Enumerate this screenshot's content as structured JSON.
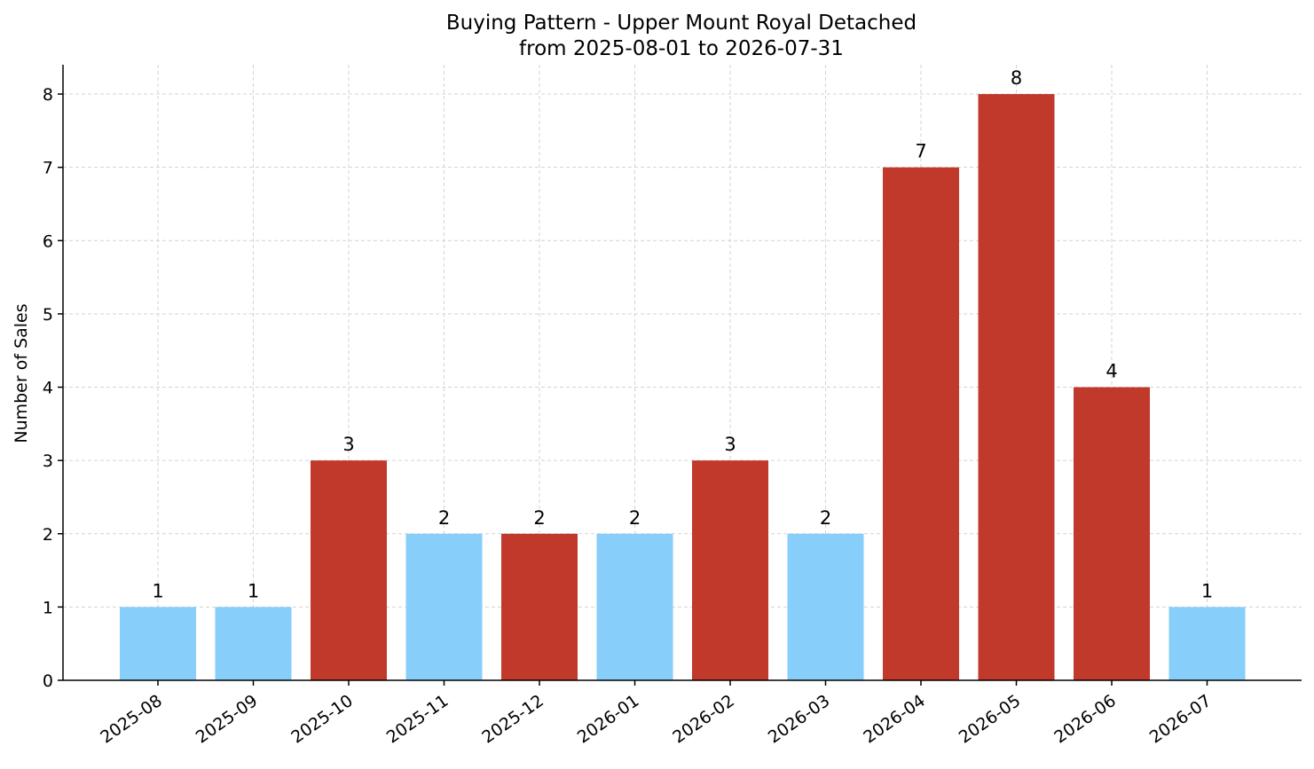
{
  "chart_data": {
    "type": "bar",
    "title": "Buying Pattern - Upper Mount Royal Detached",
    "subtitle": "from 2025-08-01 to 2026-07-31",
    "xlabel": "",
    "ylabel": "Number of Sales",
    "categories": [
      "2025-08",
      "2025-09",
      "2025-10",
      "2025-11",
      "2025-12",
      "2026-01",
      "2026-02",
      "2026-03",
      "2026-04",
      "2026-05",
      "2026-06",
      "2026-07"
    ],
    "values": [
      1,
      1,
      3,
      2,
      2,
      2,
      3,
      2,
      7,
      8,
      4,
      1
    ],
    "bar_colors": [
      "#87cefa",
      "#87cefa",
      "#c0392b",
      "#87cefa",
      "#c0392b",
      "#87cefa",
      "#c0392b",
      "#87cefa",
      "#c0392b",
      "#c0392b",
      "#c0392b",
      "#87cefa"
    ],
    "ylim": [
      0,
      8.4
    ],
    "yticks": [
      0,
      1,
      2,
      3,
      4,
      5,
      6,
      7,
      8
    ],
    "grid": true,
    "data_labels": true
  }
}
